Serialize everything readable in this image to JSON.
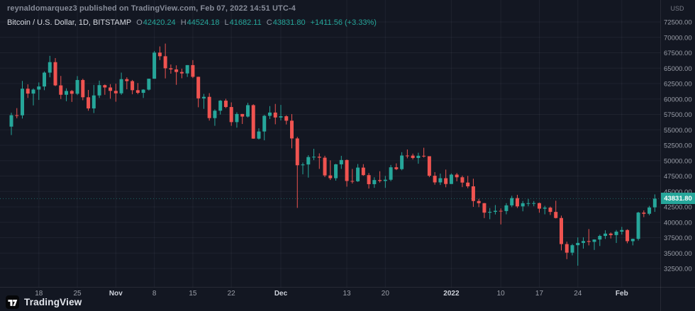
{
  "attribution": "reynaldomarquez3 published on TradingView.com, Feb 07, 2022 14:51 UTC-4",
  "legend": {
    "symbol_title": "Bitcoin / U.S. Dollar, 1D, BITSTAMP",
    "ohlc": [
      {
        "label": "O",
        "value": "42420.24"
      },
      {
        "label": "H",
        "value": "44524.18"
      },
      {
        "label": "L",
        "value": "41682.11"
      },
      {
        "label": "C",
        "value": "43831.80"
      }
    ],
    "change": "+1411.56 (+3.33%)"
  },
  "price_axis": {
    "currency": "USD",
    "labels": [
      "72500.00",
      "70000.00",
      "67500.00",
      "65000.00",
      "62500.00",
      "60000.00",
      "57500.00",
      "55000.00",
      "52500.00",
      "50000.00",
      "47500.00",
      "45000.00",
      "42500.00",
      "40000.00",
      "37500.00",
      "35000.00",
      "32500.00"
    ],
    "last_price": "43831.80"
  },
  "time_axis": {
    "labels": [
      {
        "text": "18",
        "index": 5,
        "major": false
      },
      {
        "text": "25",
        "index": 12,
        "major": false
      },
      {
        "text": "Nov",
        "index": 19,
        "major": true
      },
      {
        "text": "8",
        "index": 26,
        "major": false
      },
      {
        "text": "15",
        "index": 33,
        "major": false
      },
      {
        "text": "22",
        "index": 40,
        "major": false
      },
      {
        "text": "Dec",
        "index": 49,
        "major": true
      },
      {
        "text": "13",
        "index": 61,
        "major": false
      },
      {
        "text": "20",
        "index": 68,
        "major": false
      },
      {
        "text": "2022",
        "index": 80,
        "major": true
      },
      {
        "text": "10",
        "index": 89,
        "major": false
      },
      {
        "text": "17",
        "index": 96,
        "major": false
      },
      {
        "text": "24",
        "index": 103,
        "major": false
      },
      {
        "text": "Feb",
        "index": 111,
        "major": true
      }
    ]
  },
  "footer": {
    "brand": "TradingView"
  },
  "colors": {
    "up": "#26a69a",
    "down": "#ef5350",
    "bg": "#131722",
    "grid": "rgba(240,243,250,0.055)",
    "text_muted": "#9b9fa9",
    "text_bright": "#cfd3dc",
    "badge_bg": "#26a69a",
    "badge_text": "#ffffff"
  },
  "chart_data": {
    "type": "candlestick",
    "title": "Bitcoin / U.S. Dollar, 1D, BITSTAMP",
    "interval": "1D",
    "ylabel": "USD",
    "ylim": [
      32500,
      72500
    ],
    "grid": true,
    "candles_format": [
      "date",
      "open",
      "high",
      "low",
      "close"
    ],
    "candles": [
      [
        "2021-10-13",
        55520,
        57770,
        54150,
        57370
      ],
      [
        "2021-10-14",
        57370,
        58520,
        56870,
        57350
      ],
      [
        "2021-10-15",
        57350,
        62930,
        56830,
        61670
      ],
      [
        "2021-10-16",
        61670,
        62380,
        60170,
        60880
      ],
      [
        "2021-10-17",
        60880,
        61720,
        58960,
        61530
      ],
      [
        "2021-10-18",
        61530,
        62690,
        59850,
        62030
      ],
      [
        "2021-10-19",
        62030,
        64480,
        61430,
        64280
      ],
      [
        "2021-10-20",
        64280,
        67000,
        63520,
        65980
      ],
      [
        "2021-10-21",
        65980,
        66640,
        62090,
        62210
      ],
      [
        "2021-10-22",
        62210,
        63740,
        60000,
        60690
      ],
      [
        "2021-10-23",
        60690,
        61730,
        59640,
        61300
      ],
      [
        "2021-10-24",
        61300,
        61470,
        59530,
        60850
      ],
      [
        "2021-10-25",
        60850,
        63720,
        60640,
        63080
      ],
      [
        "2021-10-26",
        63080,
        63290,
        59800,
        60280
      ],
      [
        "2021-10-27",
        60280,
        61470,
        58100,
        58470
      ],
      [
        "2021-10-28",
        58470,
        62280,
        57720,
        60580
      ],
      [
        "2021-10-29",
        60580,
        62980,
        60170,
        62250
      ],
      [
        "2021-10-30",
        62250,
        62360,
        60680,
        61870
      ],
      [
        "2021-10-31",
        61870,
        62410,
        60050,
        61320
      ],
      [
        "2021-11-01",
        61320,
        62480,
        59560,
        60920
      ],
      [
        "2021-11-02",
        60920,
        64280,
        60670,
        63220
      ],
      [
        "2021-11-03",
        63220,
        63520,
        61580,
        62900
      ],
      [
        "2021-11-04",
        62900,
        63090,
        60770,
        61430
      ],
      [
        "2021-11-05",
        61430,
        62590,
        60790,
        61000
      ],
      [
        "2021-11-06",
        61000,
        61590,
        60170,
        61520
      ],
      [
        "2021-11-07",
        61520,
        63290,
        61380,
        63290
      ],
      [
        "2021-11-08",
        63290,
        67790,
        63290,
        67530
      ],
      [
        "2021-11-09",
        67530,
        68530,
        66320,
        66940
      ],
      [
        "2021-11-10",
        66940,
        68990,
        63340,
        64980
      ],
      [
        "2021-11-11",
        64980,
        65600,
        64110,
        64800
      ],
      [
        "2021-11-12",
        64800,
        65460,
        62300,
        64380
      ],
      [
        "2021-11-13",
        64380,
        64920,
        63360,
        64150
      ],
      [
        "2021-11-14",
        64150,
        65500,
        63580,
        65500
      ],
      [
        "2021-11-15",
        65500,
        66310,
        63390,
        63600
      ],
      [
        "2021-11-16",
        63600,
        63620,
        58660,
        60100
      ],
      [
        "2021-11-17",
        60100,
        60830,
        58400,
        60350
      ],
      [
        "2021-11-18",
        60350,
        60950,
        56500,
        56900
      ],
      [
        "2021-11-19",
        56900,
        58320,
        55650,
        58100
      ],
      [
        "2021-11-20",
        58100,
        59830,
        57480,
        59730
      ],
      [
        "2021-11-21",
        59730,
        60040,
        58520,
        58700
      ],
      [
        "2021-11-22",
        58700,
        59450,
        55650,
        56250
      ],
      [
        "2021-11-23",
        56250,
        57840,
        55350,
        57570
      ],
      [
        "2021-11-24",
        57570,
        57580,
        55950,
        57150
      ],
      [
        "2021-11-25",
        57150,
        59380,
        57000,
        59000
      ],
      [
        "2021-11-26",
        59000,
        59150,
        53550,
        53570
      ],
      [
        "2021-11-27",
        53570,
        55250,
        53430,
        54730
      ],
      [
        "2021-11-28",
        54730,
        57420,
        53300,
        57270
      ],
      [
        "2021-11-29",
        57270,
        58850,
        56750,
        57800
      ],
      [
        "2021-11-30",
        57800,
        59200,
        55900,
        57000
      ],
      [
        "2021-12-01",
        57000,
        59040,
        56520,
        57200
      ],
      [
        "2021-12-02",
        57200,
        57360,
        55870,
        56480
      ],
      [
        "2021-12-03",
        56480,
        57550,
        52000,
        53600
      ],
      [
        "2021-12-04",
        53600,
        53860,
        42330,
        49250
      ],
      [
        "2021-12-05",
        49250,
        49690,
        47780,
        49380
      ],
      [
        "2021-12-06",
        49380,
        50880,
        47250,
        50580
      ],
      [
        "2021-12-07",
        50580,
        51920,
        50080,
        50630
      ],
      [
        "2021-12-08",
        50630,
        51180,
        48660,
        50480
      ],
      [
        "2021-12-09",
        50480,
        50790,
        47330,
        47600
      ],
      [
        "2021-12-10",
        47600,
        50050,
        46860,
        47150
      ],
      [
        "2021-12-11",
        47150,
        49480,
        46750,
        49400
      ],
      [
        "2021-12-12",
        49400,
        50780,
        48660,
        50100
      ],
      [
        "2021-12-13",
        50100,
        50190,
        45780,
        46700
      ],
      [
        "2021-12-14",
        46700,
        48650,
        46290,
        46650
      ],
      [
        "2021-12-15",
        46650,
        49450,
        46540,
        48870
      ],
      [
        "2021-12-16",
        48870,
        49430,
        47540,
        47650
      ],
      [
        "2021-12-17",
        47650,
        47990,
        45470,
        46180
      ],
      [
        "2021-12-18",
        46180,
        47300,
        45590,
        46850
      ],
      [
        "2021-12-19",
        46850,
        48280,
        46440,
        46700
      ],
      [
        "2021-12-20",
        46700,
        47520,
        45580,
        46900
      ],
      [
        "2021-12-21",
        46900,
        49300,
        46660,
        48920
      ],
      [
        "2021-12-22",
        48920,
        49560,
        48460,
        48620
      ],
      [
        "2021-12-23",
        48620,
        51370,
        48430,
        50830
      ],
      [
        "2021-12-24",
        50830,
        51810,
        50380,
        50820
      ],
      [
        "2021-12-25",
        50820,
        51140,
        50190,
        50430
      ],
      [
        "2021-12-26",
        50430,
        51280,
        49500,
        50790
      ],
      [
        "2021-12-27",
        50790,
        52090,
        50500,
        50720
      ],
      [
        "2021-12-28",
        50720,
        50720,
        47320,
        47550
      ],
      [
        "2021-12-29",
        47550,
        48140,
        46100,
        46470
      ],
      [
        "2021-12-30",
        46470,
        47900,
        46050,
        47150
      ],
      [
        "2021-12-31",
        47150,
        48550,
        45680,
        46210
      ],
      [
        "2022-01-01",
        46210,
        47920,
        46210,
        47730
      ],
      [
        "2022-01-02",
        47730,
        47990,
        46650,
        47300
      ],
      [
        "2022-01-03",
        47300,
        47570,
        45700,
        46440
      ],
      [
        "2022-01-04",
        46440,
        47530,
        45530,
        45830
      ],
      [
        "2022-01-05",
        45830,
        47070,
        42500,
        43450
      ],
      [
        "2022-01-06",
        43450,
        43800,
        42450,
        43100
      ],
      [
        "2022-01-07",
        43100,
        43130,
        40680,
        41560
      ],
      [
        "2022-01-08",
        41560,
        42310,
        40500,
        41690
      ],
      [
        "2022-01-09",
        41690,
        42790,
        41270,
        41860
      ],
      [
        "2022-01-10",
        41860,
        42250,
        39650,
        41820
      ],
      [
        "2022-01-11",
        41820,
        43100,
        41290,
        42740
      ],
      [
        "2022-01-12",
        42740,
        44300,
        42450,
        43920
      ],
      [
        "2022-01-13",
        43920,
        44450,
        42320,
        42580
      ],
      [
        "2022-01-14",
        42580,
        43450,
        41780,
        43090
      ],
      [
        "2022-01-15",
        43090,
        43790,
        42590,
        43100
      ],
      [
        "2022-01-16",
        43100,
        43450,
        42600,
        43110
      ],
      [
        "2022-01-17",
        43110,
        43180,
        41550,
        42210
      ],
      [
        "2022-01-18",
        42210,
        42670,
        41290,
        42370
      ],
      [
        "2022-01-19",
        42370,
        42550,
        41180,
        41680
      ],
      [
        "2022-01-20",
        41680,
        43490,
        40620,
        40690
      ],
      [
        "2022-01-21",
        40690,
        41080,
        35440,
        36460
      ],
      [
        "2022-01-22",
        36460,
        36850,
        34020,
        35070
      ],
      [
        "2022-01-23",
        35070,
        36490,
        34630,
        36280
      ],
      [
        "2022-01-24",
        36280,
        37540,
        32950,
        36650
      ],
      [
        "2022-01-25",
        36650,
        37570,
        35730,
        36950
      ],
      [
        "2022-01-26",
        36950,
        38900,
        36250,
        36820
      ],
      [
        "2022-01-27",
        36820,
        37230,
        35510,
        37200
      ],
      [
        "2022-01-28",
        37200,
        37990,
        36150,
        37780
      ],
      [
        "2022-01-29",
        37780,
        38700,
        37290,
        38160
      ],
      [
        "2022-01-30",
        38160,
        38340,
        37370,
        37920
      ],
      [
        "2022-01-31",
        37920,
        38740,
        36640,
        38480
      ],
      [
        "2022-02-01",
        38480,
        39250,
        38010,
        38740
      ],
      [
        "2022-02-02",
        38740,
        38860,
        36590,
        36930
      ],
      [
        "2022-02-03",
        36930,
        37350,
        36250,
        37310
      ],
      [
        "2022-02-04",
        37310,
        41700,
        37030,
        41570
      ],
      [
        "2022-02-05",
        41570,
        41920,
        40830,
        41380
      ],
      [
        "2022-02-06",
        41380,
        42660,
        41130,
        42400
      ],
      [
        "2022-02-07",
        42420.24,
        44524.18,
        41682.11,
        43831.8
      ]
    ]
  }
}
